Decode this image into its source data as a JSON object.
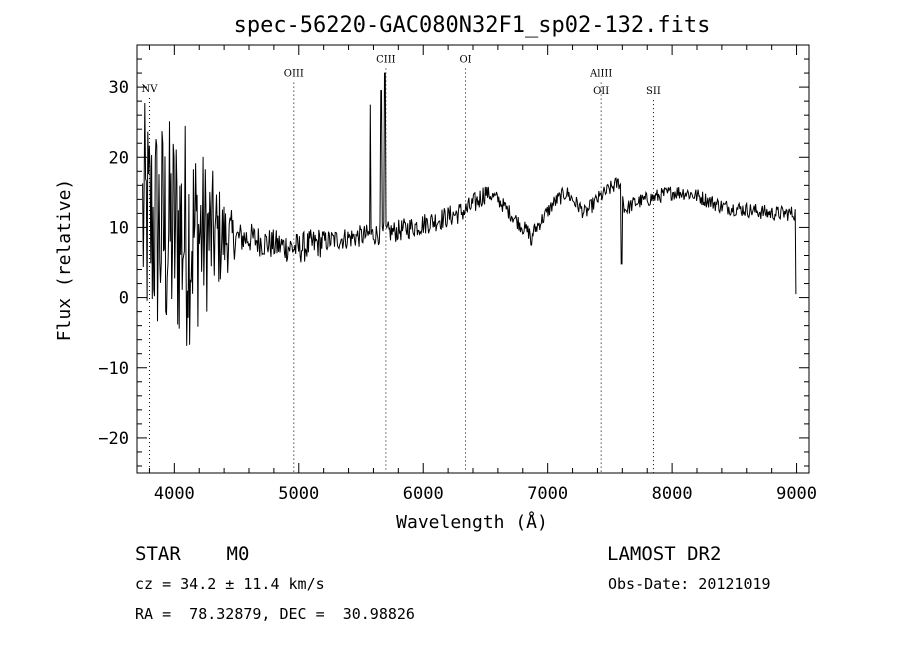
{
  "chart_data": {
    "type": "line",
    "title": "spec-56220-GAC080N32F1_sp02-132.fits",
    "xlabel": "Wavelength (Å)",
    "ylabel": "Flux (relative)",
    "xlim": [
      3700,
      9100
    ],
    "ylim": [
      -25,
      36
    ],
    "x_ticks": [
      4000,
      5000,
      6000,
      7000,
      8000,
      9000
    ],
    "y_ticks": [
      -20,
      -10,
      0,
      10,
      20,
      30
    ],
    "grid": false,
    "line_color": "#000000",
    "spectrum_knots": [
      [
        3750,
        11
      ],
      [
        3850,
        10
      ],
      [
        3950,
        9
      ],
      [
        4050,
        9.5
      ],
      [
        4200,
        9
      ],
      [
        4400,
        8.5
      ],
      [
        4600,
        8.5
      ],
      [
        4800,
        7.5
      ],
      [
        5000,
        7
      ],
      [
        5200,
        8
      ],
      [
        5400,
        8.5
      ],
      [
        5600,
        9
      ],
      [
        5800,
        9.5
      ],
      [
        6000,
        10.5
      ],
      [
        6200,
        11.5
      ],
      [
        6350,
        12.5
      ],
      [
        6450,
        14
      ],
      [
        6500,
        15
      ],
      [
        6600,
        14
      ],
      [
        6700,
        12
      ],
      [
        6800,
        10
      ],
      [
        6870,
        9
      ],
      [
        6950,
        11
      ],
      [
        7050,
        13.5
      ],
      [
        7150,
        15
      ],
      [
        7250,
        13
      ],
      [
        7300,
        12
      ],
      [
        7400,
        14
      ],
      [
        7500,
        15.5
      ],
      [
        7580,
        16.5
      ],
      [
        7620,
        12.5
      ],
      [
        7700,
        13.5
      ],
      [
        7800,
        14
      ],
      [
        7900,
        14.5
      ],
      [
        8000,
        15
      ],
      [
        8100,
        15
      ],
      [
        8200,
        14.5
      ],
      [
        8400,
        13
      ],
      [
        8600,
        12.5
      ],
      [
        8800,
        12
      ],
      [
        8950,
        12
      ],
      [
        9000,
        12
      ]
    ],
    "emission_spikes": [
      {
        "x": 5575,
        "y": 27.5
      },
      {
        "x": 5660,
        "y": 29.5
      },
      {
        "x": 5690,
        "y": 32
      }
    ],
    "absorption_dips": [
      {
        "x": 6870,
        "y": 7.5
      },
      {
        "x": 7595,
        "y": 4.8
      },
      {
        "x": 9000,
        "y": 0.5
      }
    ],
    "line_markers": [
      {
        "label": "NV",
        "x": 3800,
        "label_y": 29.3
      },
      {
        "label": "OIII",
        "x": 4960,
        "label_y": 31.5
      },
      {
        "label": "CIII",
        "x": 5700,
        "label_y": 33.5
      },
      {
        "label": "OI",
        "x": 6340,
        "label_y": 33.5
      },
      {
        "label": "AlIII",
        "x": 7430,
        "label_y": 31.5
      },
      {
        "label": "OII",
        "x": 7430,
        "label_y": 29
      },
      {
        "label": "SII",
        "x": 7850,
        "label_y": 29
      }
    ]
  },
  "info": {
    "class_line": "STAR    M0",
    "survey": "LAMOST DR2",
    "cz_line": "cz = 34.2 ± 11.4 km/s",
    "obs_date": "Obs-Date: 20121019",
    "coords": "RA =  78.32879, DEC =  30.98826"
  }
}
